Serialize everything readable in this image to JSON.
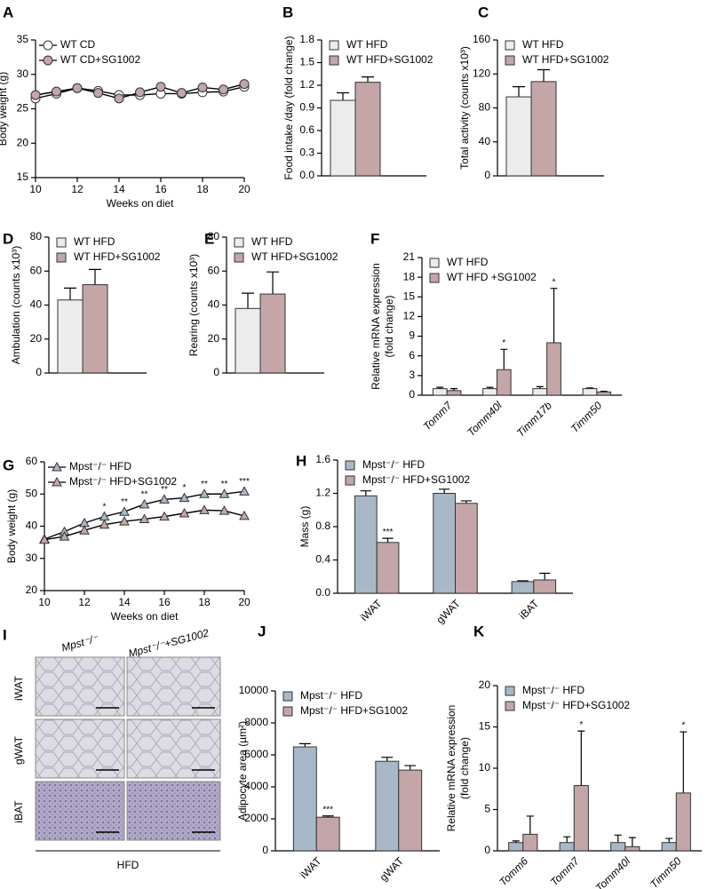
{
  "chart_data": [
    {
      "label": "A",
      "type": "line",
      "ylabel": "Body weight (g)",
      "xlabel": "Weeks on diet",
      "x": [
        10,
        11,
        12,
        13,
        14,
        15,
        16,
        17,
        18,
        19,
        20
      ],
      "xlim": [
        10,
        20
      ],
      "xticks": [
        10,
        12,
        14,
        16,
        18,
        20
      ],
      "ylim": [
        15,
        35
      ],
      "yticks": [
        15,
        20,
        25,
        30,
        35
      ],
      "series": [
        {
          "name": "WT CD",
          "color": "#ffffff",
          "marker": "circle",
          "values": [
            26.5,
            27.2,
            28,
            27.6,
            27,
            27,
            27.2,
            27.2,
            27.4,
            27.5,
            28.2
          ]
        },
        {
          "name": "WT CD+SG1002",
          "color": "#c4a6a8",
          "marker": "circle",
          "values": [
            27,
            27.5,
            28,
            27.3,
            26.5,
            27.4,
            28.2,
            27.3,
            28.1,
            27.8,
            28.6
          ]
        }
      ]
    },
    {
      "label": "B",
      "type": "bar",
      "ylabel": [
        "Food intake /day  (fold change)"
      ],
      "ylim": [
        0,
        1.8
      ],
      "yticks": [
        {
          "value": 0,
          "label": "0.0"
        },
        0.3,
        0.6,
        0.9,
        1.2,
        1.5,
        1.8
      ],
      "series": [
        {
          "name": "WT HFD",
          "color": "#ececec",
          "values": [
            1.0
          ],
          "errors": [
            0.1
          ]
        },
        {
          "name": "WT HFD+SG1002",
          "color": "#c4a6a8",
          "values": [
            1.24
          ],
          "errors": [
            0.07
          ]
        }
      ]
    },
    {
      "label": "C",
      "type": "bar",
      "ylabel": [
        "Total activity (counts x10³)"
      ],
      "ylim": [
        0,
        160
      ],
      "yticks": [
        0,
        40,
        80,
        120,
        160
      ],
      "series": [
        {
          "name": "WT HFD",
          "color": "#ececec",
          "values": [
            93
          ],
          "errors": [
            12
          ]
        },
        {
          "name": "WT HFD+SG1002",
          "color": "#c4a6a8",
          "values": [
            111
          ],
          "errors": [
            14
          ]
        }
      ]
    },
    {
      "label": "D",
      "type": "bar",
      "ylabel": [
        "Ambulation (counts x10³)"
      ],
      "ylim": [
        0,
        80
      ],
      "yticks": [
        0,
        20,
        40,
        60,
        80
      ],
      "series": [
        {
          "name": "WT HFD",
          "color": "#ececec",
          "values": [
            43
          ],
          "errors": [
            7
          ]
        },
        {
          "name": "WT HFD+SG1002",
          "color": "#c4a6a8",
          "values": [
            52
          ],
          "errors": [
            9
          ]
        }
      ]
    },
    {
      "label": "E",
      "type": "bar",
      "ylabel": [
        "Rearing (counts x10³)"
      ],
      "ylim": [
        0,
        80
      ],
      "yticks": [
        0,
        20,
        40,
        60,
        80
      ],
      "series": [
        {
          "name": "WT HFD",
          "color": "#ececec",
          "values": [
            38
          ],
          "errors": [
            9
          ]
        },
        {
          "name": "WT HFD+SG1002",
          "color": "#c4a6a8",
          "values": [
            46.5
          ],
          "errors": [
            13
          ]
        }
      ]
    },
    {
      "label": "F",
      "type": "bar",
      "ylabel": [
        "Relative mRNA expression",
        "(fold change)"
      ],
      "category_style": "italic",
      "categories": [
        "Tomm7",
        "Tomm40l",
        "Timm17b",
        "Timm50"
      ],
      "ylim": [
        0,
        21
      ],
      "yticks": [
        0,
        3,
        6,
        9,
        12,
        15,
        18,
        21
      ],
      "series": [
        {
          "name": "WT HFD",
          "color": "#ececec",
          "values": [
            1,
            1,
            1,
            1
          ],
          "errors": [
            0.2,
            0.2,
            0.3,
            0.1
          ]
        },
        {
          "name": "WT HFD +SG1002",
          "color": "#c4a6a8",
          "values": [
            0.7,
            3.9,
            8,
            0.5
          ],
          "errors": [
            0.3,
            3.1,
            8.3,
            0.1
          ],
          "stars": [
            null,
            "*",
            "*",
            null
          ]
        }
      ]
    },
    {
      "label": "G",
      "type": "line",
      "ylabel": "Body weight (g)",
      "xlabel": "Weeks on diet",
      "x": [
        10,
        11,
        12,
        13,
        14,
        15,
        16,
        17,
        18,
        19,
        20
      ],
      "xlim": [
        10,
        20
      ],
      "xticks": [
        10,
        12,
        14,
        16,
        18,
        20
      ],
      "ylim": [
        20,
        60
      ],
      "yticks": [
        20,
        30,
        40,
        50,
        60
      ],
      "series": [
        {
          "name": "Mpst⁻/⁻ HFD",
          "color": "#a9b8c8",
          "marker": "triangle",
          "values": [
            36,
            38.3,
            41,
            43,
            44.5,
            46.8,
            48.3,
            48.8,
            50,
            50,
            50.8
          ],
          "stars": [
            null,
            null,
            null,
            "*",
            "**",
            "**",
            "**",
            "*",
            "**",
            "**",
            "***"
          ]
        },
        {
          "name": "Mpst⁻/⁻ HFD+SG1002",
          "color": "#c4a6a8",
          "marker": "triangle",
          "values": [
            35.8,
            36.8,
            38.7,
            40.5,
            41.5,
            42.2,
            43,
            44,
            45,
            44.8,
            43.2
          ]
        }
      ]
    },
    {
      "label": "H",
      "type": "bar",
      "ylabel": [
        "Mass (g)"
      ],
      "categories": [
        "iWAT",
        "gWAT",
        "iBAT"
      ],
      "ylim": [
        0,
        1.6
      ],
      "yticks": [
        {
          "value": 0,
          "label": "0.0"
        },
        0.4,
        0.8,
        1.2,
        1.6
      ],
      "series": [
        {
          "name": "Mpst⁻/⁻ HFD",
          "color": "#a9b8c8",
          "values": [
            1.17,
            1.2,
            0.14
          ],
          "errors": [
            0.06,
            0.05,
            0.01
          ]
        },
        {
          "name": "Mpst⁻/⁻ HFD+SG1002",
          "color": "#c4a6a8",
          "values": [
            0.61,
            1.08,
            0.16
          ],
          "errors": [
            0.05,
            0.03,
            0.08
          ],
          "stars": [
            "***",
            null,
            null
          ]
        }
      ]
    },
    {
      "label": "J",
      "type": "bar",
      "ylabel": [
        "Adipocyte area (µm²)"
      ],
      "categories": [
        "iWAT",
        "gWAT"
      ],
      "ylim": [
        0,
        10000
      ],
      "yticks": [
        0,
        2000,
        4000,
        6000,
        8000,
        10000
      ],
      "series": [
        {
          "name": "Mpst⁻/⁻ HFD",
          "color": "#a9b8c8",
          "values": [
            6500,
            5600
          ],
          "errors": [
            200,
            250
          ]
        },
        {
          "name": "Mpst⁻/⁻ HFD+SG1002",
          "color": "#c4a6a8",
          "values": [
            2100,
            5050
          ],
          "errors": [
            80,
            280
          ],
          "stars": [
            "***",
            null
          ]
        }
      ]
    },
    {
      "label": "K",
      "type": "bar",
      "ylabel": [
        "Relative mRNA expression",
        "(fold change)"
      ],
      "category_style": "italic",
      "categories": [
        "Tomm6",
        "Tomm7",
        "Tomm40l",
        "Timm50"
      ],
      "ylim": [
        0,
        20
      ],
      "yticks": [
        0,
        5,
        10,
        15,
        20
      ],
      "series": [
        {
          "name": "Mpst⁻/⁻ HFD",
          "color": "#a9b8c8",
          "values": [
            1,
            1,
            1,
            1
          ],
          "errors": [
            0.2,
            0.7,
            0.9,
            0.5
          ]
        },
        {
          "name": "Mpst⁻/⁻ HFD+SG1002",
          "color": "#c4a6a8",
          "values": [
            2,
            7.9,
            0.5,
            7
          ],
          "errors": [
            2.2,
            6.6,
            1.1,
            7.4
          ],
          "stars": [
            null,
            "*",
            null,
            "*"
          ]
        }
      ]
    }
  ],
  "panel_i": {
    "label": "I",
    "columns": [
      "Mpst⁻/⁻",
      "Mpst⁻/⁻+SG1002"
    ],
    "rows": [
      "iWAT",
      "gWAT",
      "iBAT"
    ],
    "footer": "HFD"
  }
}
